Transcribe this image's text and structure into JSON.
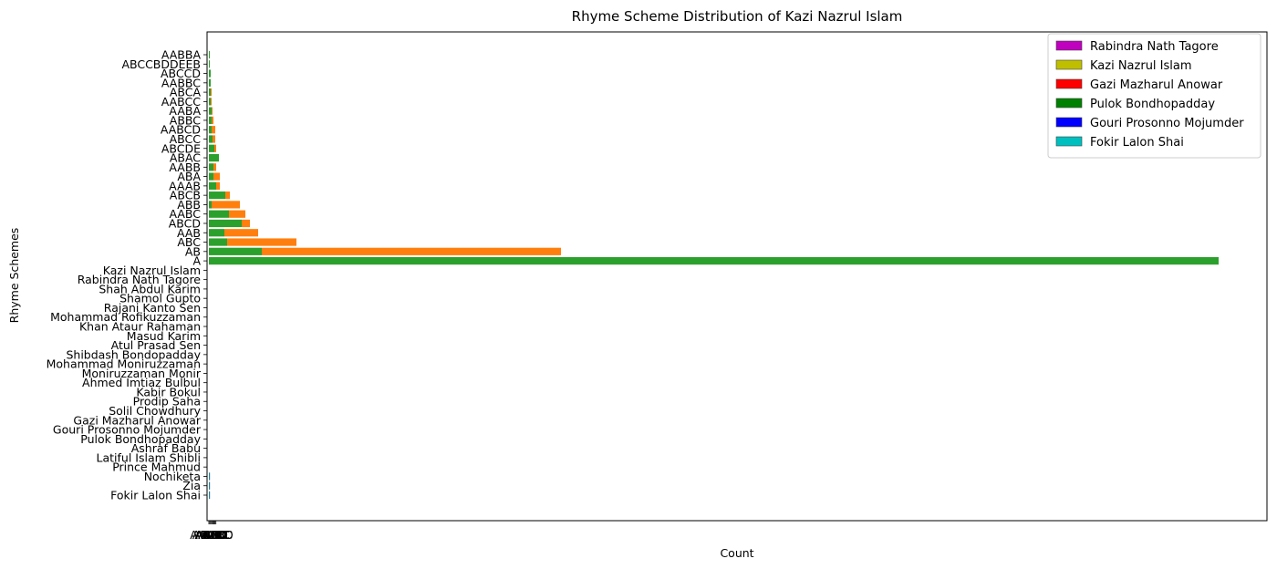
{
  "chart_data": {
    "type": "bar",
    "orientation": "horizontal",
    "stacked": true,
    "title": "Rhyme Scheme Distribution of Kazi Nazrul Islam",
    "xlabel": "Count",
    "ylabel": "Rhyme Schemes",
    "x_tick_labels": [
      "AAABC",
      "ABCD",
      "ABBD",
      "ABCDD",
      "AAD",
      "ABD",
      "ABC",
      "AABC"
    ],
    "categories": [
      "Fokir Lalon Shai",
      "Zia",
      "Nochiketa",
      "Prince Mahmud",
      "Latiful Islam Shibli",
      "Ashraf Babu",
      "Pulok Bondhopadday",
      "Gouri Prosonno Mojumder",
      "Gazi Mazharul Anowar",
      "Solil Chowdhury",
      "Prodip Saha",
      "Kabir Bokul",
      "Ahmed Imtiaz Bulbul",
      "Moniruzzaman Monir",
      "Mohammad Moniruzzaman",
      "Shibdash Bondopadday",
      "Atul Prasad Sen",
      "Masud Karim",
      "Khan Ataur Rahaman",
      "Mohammad Rofikuzzaman",
      "Rajani Kanto Sen",
      "Shamol Gupto",
      "Shah Abdul Karim",
      "Rabindra Nath Tagore",
      "Kazi Nazrul Islam",
      "A",
      "AB",
      "ABC",
      "AAB",
      "ABCD",
      "AABC",
      "ABB",
      "ABCB",
      "AAAB",
      "ABA",
      "AABB",
      "ABAC",
      "ABCDE",
      "ABCC",
      "AABCD",
      "ABBC",
      "AABA",
      "AABCC",
      "ABCA",
      "AABBC",
      "ABCCD",
      "ABCCBDDEEB",
      "AABBA"
    ],
    "series": [
      {
        "name": "",
        "color": "#2ca02c",
        "values": [
          0.2,
          0.2,
          0.2,
          0,
          0,
          0,
          0,
          0,
          0,
          0,
          0,
          0,
          0,
          0,
          0,
          0,
          0,
          0,
          0,
          0,
          0,
          0,
          0,
          0,
          0,
          1107,
          58,
          20,
          17,
          36,
          22,
          3,
          18,
          8,
          5,
          5,
          11,
          6,
          4,
          3,
          3,
          3,
          2,
          2,
          2,
          2,
          1,
          1
        ]
      },
      {
        "name": "",
        "color": "#ff7f0e",
        "values": [
          0,
          0,
          0,
          0,
          0,
          0,
          0,
          0,
          0,
          0,
          0,
          0,
          0,
          0,
          0,
          0,
          0,
          0,
          0,
          0,
          0,
          0,
          0,
          0,
          0,
          0,
          328,
          76,
          37,
          9,
          18,
          31,
          5,
          4,
          7,
          3,
          0,
          2,
          3,
          4,
          2,
          1,
          1,
          1,
          0,
          0,
          0,
          0
        ]
      },
      {
        "name": "",
        "color": "#1f77b4",
        "values": [
          1,
          1,
          1,
          0,
          0,
          0,
          0,
          0,
          0,
          0,
          0,
          0,
          0,
          0,
          0,
          0,
          0,
          0,
          0,
          0,
          0,
          0,
          0,
          0,
          0,
          0,
          0,
          0,
          0,
          0,
          0,
          0,
          0,
          0,
          0,
          0,
          0,
          0,
          0,
          0,
          0,
          0,
          0,
          0,
          0,
          0,
          0,
          0
        ]
      }
    ],
    "xlim": [
      -2,
      1160
    ],
    "legend": {
      "position": "top-right",
      "entries": [
        {
          "label": "Rabindra Nath Tagore",
          "color": "#bf00bf"
        },
        {
          "label": "Kazi Nazrul Islam",
          "color": "#bfbf00"
        },
        {
          "label": "Gazi Mazharul Anowar",
          "color": "#ff0000"
        },
        {
          "label": "Pulok Bondhopadday",
          "color": "#008000"
        },
        {
          "label": "Gouri Prosonno Mojumder",
          "color": "#0000ff"
        },
        {
          "label": "Fokir Lalon Shai",
          "color": "#00bfbf"
        }
      ]
    },
    "grid": false
  }
}
